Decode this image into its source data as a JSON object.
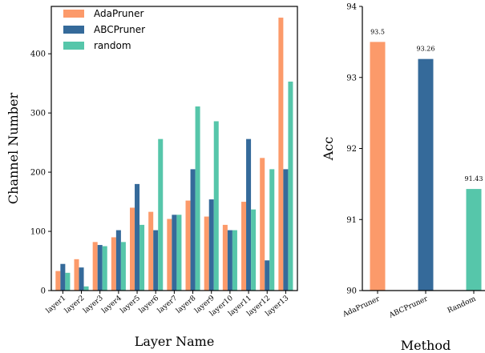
{
  "chart_data": [
    {
      "type": "bar",
      "xlabel": "Layer Name",
      "ylabel": "Channel Number",
      "ylim": [
        0,
        480
      ],
      "yticks": [
        0,
        100,
        200,
        300,
        400
      ],
      "categories": [
        "layer1",
        "layer2",
        "layer3",
        "layer4",
        "layer5",
        "layer6",
        "layer7",
        "layer8",
        "layer9",
        "layer10",
        "layer11",
        "layer12",
        "layer13"
      ],
      "legend_position": "top-left",
      "series": [
        {
          "name": "AdaPruner",
          "color": "#FC9A6A",
          "values": [
            33,
            53,
            82,
            90,
            140,
            133,
            121,
            152,
            125,
            111,
            150,
            224,
            461
          ]
        },
        {
          "name": "ABCPruner",
          "color": "#356A9A",
          "values": [
            45,
            39,
            77,
            102,
            180,
            102,
            128,
            205,
            154,
            102,
            256,
            51,
            205
          ]
        },
        {
          "name": "random",
          "color": "#56C6AA",
          "values": [
            30,
            7,
            75,
            82,
            111,
            256,
            128,
            311,
            286,
            102,
            137,
            205,
            353
          ]
        }
      ]
    },
    {
      "type": "bar",
      "xlabel": "Method",
      "ylabel": "Acc",
      "ylim": [
        90,
        94
      ],
      "yticks": [
        90,
        91,
        92,
        93,
        94
      ],
      "categories": [
        "AdaPruner",
        "ABCPruner",
        "Random"
      ],
      "values": [
        93.5,
        93.26,
        91.43
      ],
      "data_labels": [
        "93.5",
        "93.26",
        "91.43"
      ],
      "colors": [
        "#FC9A6A",
        "#356A9A",
        "#56C6AA"
      ]
    }
  ]
}
